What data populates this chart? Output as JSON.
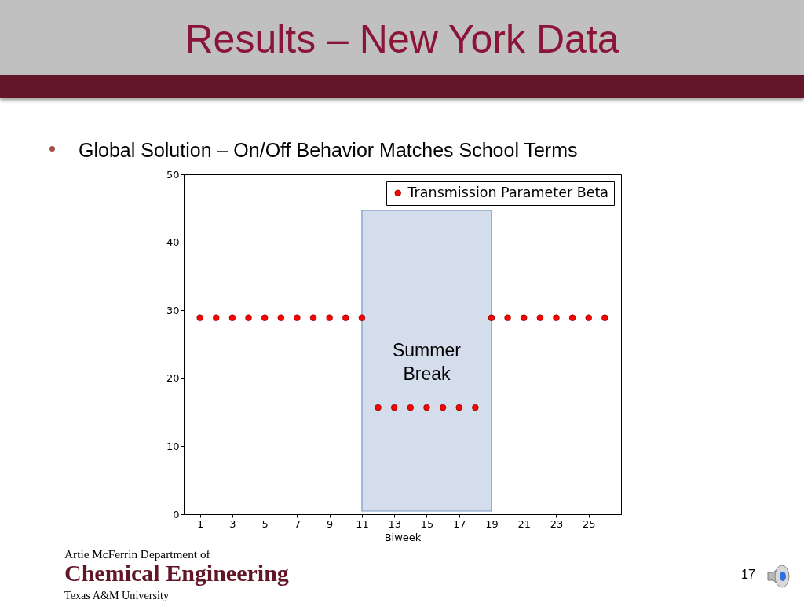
{
  "chart_data": {
    "type": "scatter",
    "title": "Results – New York Data",
    "subtitle": "Global Solution – On/Off Behavior Matches School Terms",
    "xlabel": "Biweek",
    "x": [
      1,
      2,
      3,
      4,
      5,
      6,
      7,
      8,
      9,
      10,
      11,
      12,
      13,
      14,
      15,
      16,
      17,
      18,
      19,
      20,
      21,
      22,
      23,
      24,
      25,
      26
    ],
    "series": [
      {
        "name": "Transmission Parameter Beta",
        "color": "#ff0000",
        "values": [
          28.9,
          28.9,
          28.9,
          28.9,
          28.9,
          28.9,
          28.9,
          28.9,
          28.9,
          28.9,
          28.9,
          15.7,
          15.7,
          15.7,
          15.7,
          15.7,
          15.7,
          15.7,
          28.9,
          28.9,
          28.9,
          28.9,
          28.9,
          28.9,
          28.9,
          28.9
        ]
      }
    ],
    "xlim": [
      0,
      27
    ],
    "ylim": [
      0,
      50
    ],
    "xticks": [
      1,
      3,
      5,
      7,
      9,
      11,
      13,
      15,
      17,
      19,
      21,
      23,
      25
    ],
    "yticks": [
      0,
      10,
      20,
      30,
      40,
      50
    ],
    "bands": [
      {
        "axis": "x",
        "from": 11,
        "to": 19,
        "label": "Summer Break",
        "color": "#d3ddec"
      }
    ],
    "legend": "top right",
    "marker": "circle",
    "annotations": [
      "Artie McFerrin Department of",
      "Chemical Engineering",
      "Texas A&M University",
      "17"
    ]
  }
}
